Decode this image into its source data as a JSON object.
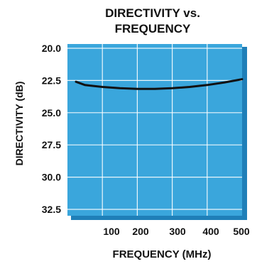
{
  "chart_data": {
    "type": "line",
    "title": "DIRECTIVITY vs.",
    "subtitle": "FREQUENCY",
    "xlabel": "FREQUENCY (MHz)",
    "ylabel": "DIRECTIVITY (dB)",
    "xlim": [
      0,
      500
    ],
    "ylim": [
      20.0,
      32.5
    ],
    "y_inverted": true,
    "x_ticks": [
      "100",
      "200",
      "300",
      "400",
      "500"
    ],
    "y_ticks": [
      "20.0",
      "22.5",
      "25.0",
      "27.5",
      "30.0",
      "32.5"
    ],
    "grid": true,
    "colors": {
      "plot_fill": "#3aa6dc",
      "grid": "#ffffff",
      "line": "#111111",
      "frame": "#1f7fb8"
    },
    "series": [
      {
        "x": [
          0,
          50,
          100,
          150,
          200,
          250,
          300,
          350,
          400,
          450,
          500
        ],
        "y": [
          22.6,
          22.85,
          23.0,
          23.1,
          23.15,
          23.15,
          23.1,
          23.0,
          22.85,
          22.65,
          22.4
        ]
      }
    ]
  }
}
